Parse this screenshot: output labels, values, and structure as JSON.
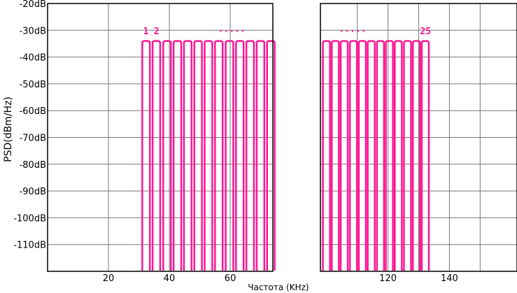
{
  "chart_data": {
    "type": "line",
    "ylabel": "PSD(dBm/Hz)",
    "xlabel": "Частота (KHz)",
    "ylim": [
      -120,
      -20
    ],
    "y_ticks": [
      -20,
      -30,
      -40,
      -50,
      -60,
      -70,
      -80,
      -90,
      -100,
      -110
    ],
    "y_tick_labels": [
      "-20dB",
      "-30dB",
      "-40dB",
      "-50dB",
      "-60dB",
      "-70dB",
      "-80dB",
      "-90dB",
      "-100dB",
      "-110dB"
    ],
    "grid": true,
    "line_color": "#ff1493",
    "panels": [
      {
        "xlim": [
          0,
          74
        ],
        "x_ticks": [
          20,
          40,
          60
        ],
        "x_gridlines": [
          20,
          40,
          60
        ],
        "series": {
          "tone_count": 13,
          "starts": [
            31.1,
            34.5,
            38.0,
            41.4,
            44.8,
            48.2,
            51.6,
            55.0,
            58.5,
            61.9,
            65.3,
            68.7,
            72.1
          ],
          "width": 2.5,
          "level": -34,
          "floor": -120
        }
      },
      {
        "xlim": [
          98,
          162
        ],
        "x_ticks": [
          120,
          140
        ],
        "x_gridlines": [
          110,
          120,
          130,
          140,
          150
        ],
        "series": {
          "tone_count": 12,
          "starts": [
            98.8,
            101.7,
            104.6,
            107.6,
            110.5,
            113.4,
            116.4,
            119.3,
            122.2,
            125.2,
            128.1,
            131.0
          ],
          "width": 2.3,
          "level": -34,
          "floor": -120
        }
      }
    ],
    "annotations": [
      {
        "text": "1",
        "x": 32.3,
        "y": -31.5,
        "panel": 0
      },
      {
        "text": "2",
        "x": 35.8,
        "y": -31.5,
        "panel": 0
      },
      {
        "text": "·····",
        "x": 60.5,
        "y": -31.5,
        "panel": 0
      },
      {
        "text": "·····",
        "x": 108.5,
        "y": -31.5,
        "panel": 1
      },
      {
        "text": "25",
        "x": 132.2,
        "y": -31.5,
        "panel": 1
      }
    ]
  }
}
